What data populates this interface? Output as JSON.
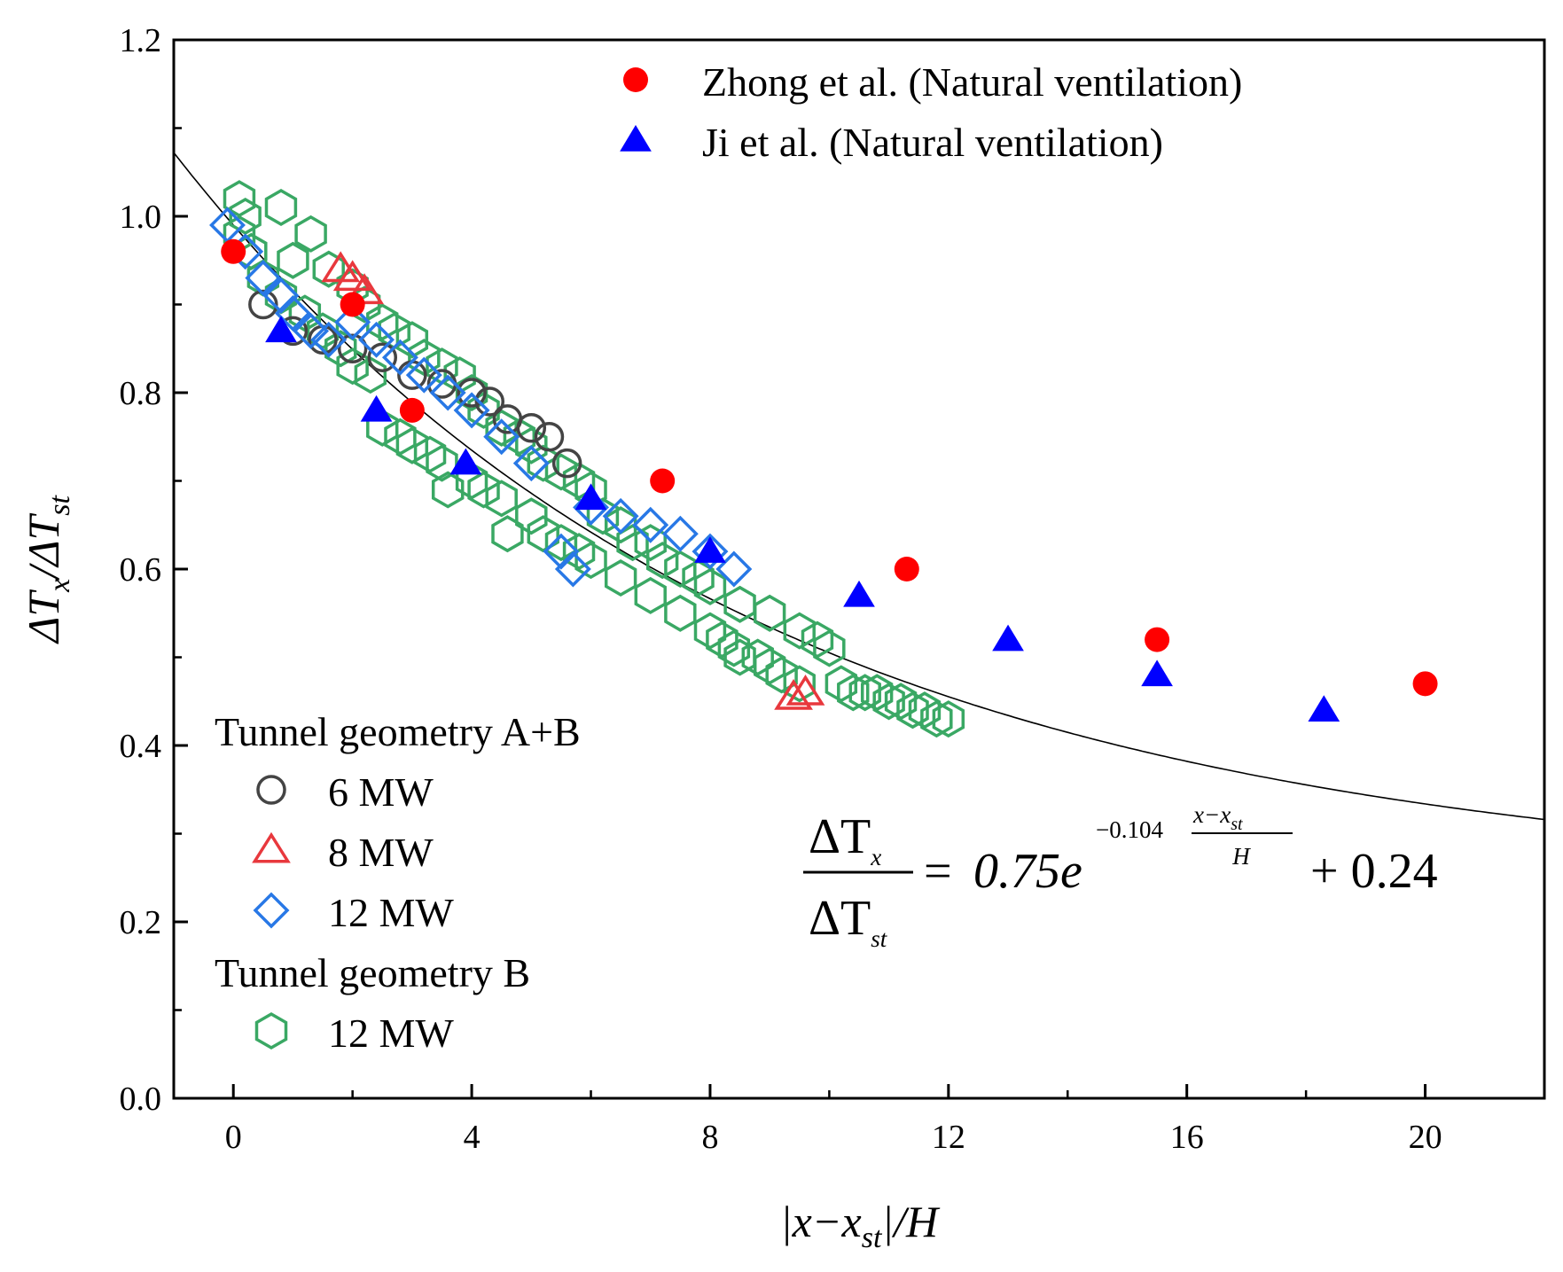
{
  "chart_data": {
    "type": "scatter",
    "xlabel": "|x−x_st|/H",
    "ylabel": "ΔT_x/ΔT_st",
    "xlim": [
      -1,
      22
    ],
    "ylim": [
      0,
      1.2
    ],
    "x_ticks": [
      "0",
      "4",
      "8",
      "12",
      "16",
      "20"
    ],
    "y_ticks": [
      "0.0",
      "0.2",
      "0.4",
      "0.6",
      "0.8",
      "1.0",
      "1.2"
    ],
    "legend_top": [
      {
        "label": "Zhong et al. (Natural ventilation)",
        "marker": "filled-circle",
        "color": "#ff0000"
      },
      {
        "label": "Ji et al. (Natural ventilation)",
        "marker": "filled-triangle",
        "color": "#0000ff"
      }
    ],
    "legend_groups": [
      {
        "heading": "Tunnel geometry A+B",
        "entries": [
          {
            "label": "6 MW",
            "marker": "open-circle",
            "color": "#444444"
          },
          {
            "label": "8 MW",
            "marker": "open-triangle",
            "color": "#e8383d"
          },
          {
            "label": "12 MW",
            "marker": "open-diamond",
            "color": "#2878e6"
          }
        ]
      },
      {
        "heading": "Tunnel geometry B",
        "entries": [
          {
            "label": "12 MW",
            "marker": "open-hexagon",
            "color": "#3aa864"
          }
        ]
      }
    ],
    "fit": {
      "a": 0.75,
      "b": -0.104,
      "c": 0.24,
      "lhs_num": "ΔT",
      "lhs_num_sub": "x",
      "lhs_den": "ΔT",
      "lhs_den_sub": "st",
      "eq_sign": "=",
      "coef": "0.75e",
      "exponent": "−0.104",
      "exp_num": "x−x",
      "exp_num_sub": "st",
      "exp_den": "H",
      "constant": "+ 0.24"
    },
    "series": [
      {
        "name": "Zhong et al. (Natural ventilation)",
        "marker": "filled-circle",
        "color": "#ff0000",
        "x": [
          0,
          2,
          3,
          7.2,
          11.3,
          15.5,
          20
        ],
        "y": [
          0.96,
          0.9,
          0.78,
          0.7,
          0.6,
          0.52,
          0.47
        ]
      },
      {
        "name": "Ji et al. (Natural ventilation)",
        "marker": "filled-triangle",
        "color": "#0000ff",
        "x": [
          0.8,
          2.4,
          3.9,
          6.0,
          8.0,
          10.5,
          13.0,
          15.5,
          18.3
        ],
        "y": [
          0.87,
          0.78,
          0.72,
          0.68,
          0.62,
          0.57,
          0.52,
          0.48,
          0.44
        ]
      },
      {
        "name": "6 MW (Tunnel geometry A+B)",
        "marker": "open-circle",
        "color": "#444444",
        "x": [
          0.5,
          1.0,
          1.5,
          2.0,
          2.5,
          3.0,
          3.5,
          4.0,
          4.3,
          4.6,
          5.0,
          5.3,
          5.6
        ],
        "y": [
          0.9,
          0.87,
          0.86,
          0.85,
          0.84,
          0.82,
          0.81,
          0.8,
          0.79,
          0.77,
          0.76,
          0.75,
          0.72
        ]
      },
      {
        "name": "8 MW (Tunnel geometry A+B)",
        "marker": "open-triangle",
        "color": "#e8383d",
        "x": [
          1.8,
          2.0,
          2.2,
          9.4,
          9.6
        ],
        "y": [
          0.94,
          0.93,
          0.915,
          0.455,
          0.46
        ]
      },
      {
        "name": "12 MW (Tunnel geometry A+B)",
        "marker": "open-diamond",
        "color": "#2878e6",
        "x": [
          -0.1,
          0.2,
          0.5,
          0.8,
          1.0,
          1.3,
          1.6,
          2.0,
          2.4,
          2.8,
          3.2,
          3.6,
          4.0,
          4.5,
          5.0,
          5.5,
          5.7,
          6.0,
          6.5,
          7.0,
          7.5,
          8.0,
          8.4
        ],
        "y": [
          0.99,
          0.96,
          0.93,
          0.91,
          0.89,
          0.87,
          0.86,
          0.88,
          0.86,
          0.84,
          0.82,
          0.8,
          0.78,
          0.75,
          0.72,
          0.62,
          0.6,
          0.67,
          0.66,
          0.65,
          0.64,
          0.62,
          0.6
        ]
      },
      {
        "name": "12 MW (Tunnel geometry B)",
        "marker": "open-hexagon",
        "color": "#3aa864",
        "x": [
          0.1,
          0.1,
          0.2,
          0.3,
          0.5,
          0.8,
          0.8,
          1.0,
          1.2,
          1.3,
          1.5,
          1.6,
          1.8,
          2.0,
          2.0,
          2.2,
          2.3,
          2.5,
          2.5,
          2.7,
          2.8,
          3.0,
          3.0,
          3.2,
          3.3,
          3.5,
          3.5,
          3.6,
          3.8,
          4.0,
          4.0,
          4.2,
          4.2,
          4.5,
          4.5,
          4.6,
          4.8,
          5.0,
          5.0,
          5.2,
          5.2,
          5.5,
          5.5,
          5.8,
          5.8,
          6.0,
          6.0,
          6.2,
          6.5,
          6.5,
          6.7,
          7.0,
          7.0,
          7.2,
          7.5,
          7.5,
          7.8,
          8.0,
          8.0,
          8.2,
          8.4,
          8.5,
          8.5,
          8.8,
          9.0,
          9.0,
          9.2,
          9.5,
          9.5,
          9.8,
          10.0,
          10.2,
          10.4,
          10.6,
          10.8,
          11.0,
          11.2,
          11.4,
          11.6,
          11.8,
          12.0
        ],
        "y": [
          1.02,
          0.98,
          1.0,
          0.96,
          0.93,
          1.01,
          0.91,
          0.95,
          0.89,
          0.98,
          0.87,
          0.94,
          0.85,
          0.92,
          0.83,
          0.9,
          0.82,
          0.88,
          0.76,
          0.87,
          0.75,
          0.86,
          0.74,
          0.84,
          0.73,
          0.83,
          0.72,
          0.69,
          0.82,
          0.8,
          0.7,
          0.78,
          0.69,
          0.76,
          0.68,
          0.64,
          0.75,
          0.74,
          0.66,
          0.72,
          0.64,
          0.71,
          0.63,
          0.7,
          0.62,
          0.69,
          0.61,
          0.66,
          0.65,
          0.59,
          0.63,
          0.63,
          0.57,
          0.61,
          0.6,
          0.55,
          0.59,
          0.58,
          0.53,
          0.52,
          0.51,
          0.56,
          0.5,
          0.5,
          0.55,
          0.49,
          0.48,
          0.53,
          0.47,
          0.52,
          0.51,
          0.47,
          0.46,
          0.46,
          0.46,
          0.45,
          0.45,
          0.44,
          0.44,
          0.43,
          0.43
        ]
      }
    ]
  }
}
